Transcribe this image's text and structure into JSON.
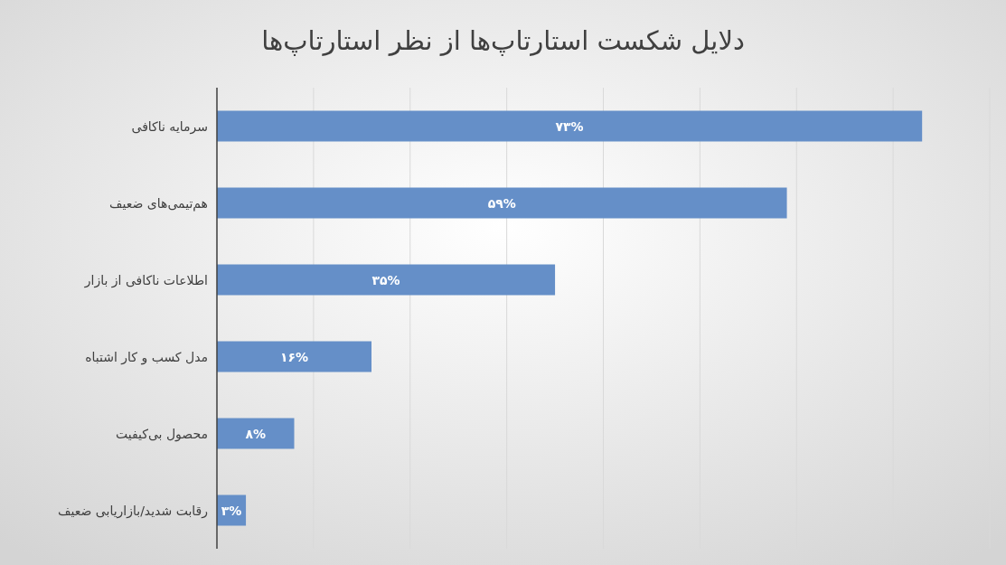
{
  "chart_data": {
    "type": "bar",
    "orientation": "horizontal",
    "title": "دلایل شکست استارتاپ‌ها از نظر استارتاپ‌ها",
    "categories": [
      "سرمایه ناکافی",
      "هم‌تیمی‌های ضعیف",
      "اطلاعات ناکافی از بازار",
      "مدل کسب و کار اشتباه",
      "محصول بی‌کیفیت",
      "رقابت شدید/بازاریابی ضعیف"
    ],
    "values": [
      73,
      59,
      35,
      16,
      8,
      3
    ],
    "value_labels": [
      "۷۳%",
      "۵۹%",
      "۳۵%",
      "۱۶%",
      "۸%",
      "۳%"
    ],
    "color": "#658fc8",
    "xlim": [
      0,
      80
    ],
    "xticks": [
      {
        "value": 0,
        "label": null
      },
      {
        "value": 10,
        "label": null
      },
      {
        "value": 20,
        "label": null
      },
      {
        "value": 30,
        "label": null
      },
      {
        "value": 40,
        "label": null
      },
      {
        "value": 50,
        "label": null
      },
      {
        "value": 60,
        "label": null
      },
      {
        "value": 70,
        "label": null
      },
      {
        "value": 80,
        "label": null
      }
    ],
    "grid": "x",
    "tick_labels": "y"
  }
}
